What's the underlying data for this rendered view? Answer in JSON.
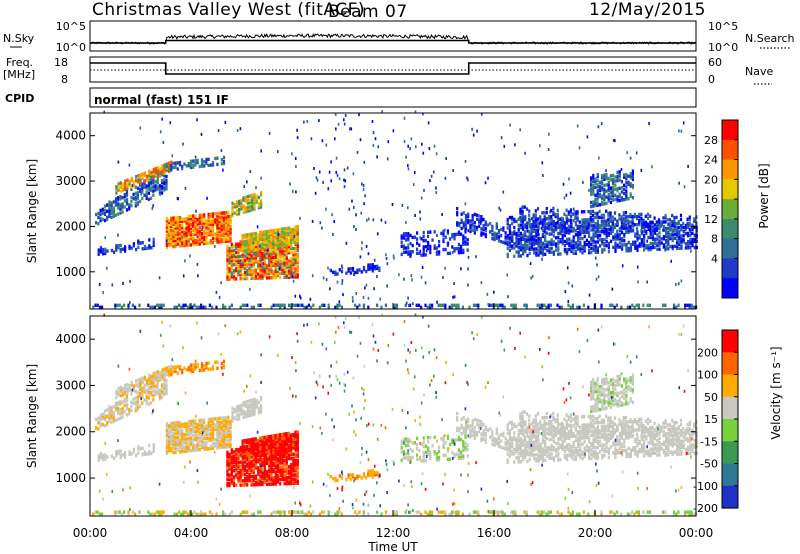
{
  "header": {
    "title": "Christmas Valley West (fitACF)",
    "beam": "Beam 07",
    "date": "12/May/2015"
  },
  "summary_panels": {
    "nsky_label": "N.Sky",
    "nsky_ticks": [
      "10^5",
      "10^0"
    ],
    "nsearch_label": "N.Search",
    "freq_label_1": "Freq.",
    "freq_label_2": "[MHz]",
    "freq_ticks": [
      "18",
      "8"
    ],
    "nave_label": "Nave",
    "nave_ticks": [
      "60",
      "0"
    ],
    "cpid_label": "CPID",
    "cpid_text": "normal (fast) 151 IF"
  },
  "chart_data": [
    {
      "type": "heatmap",
      "name": "power",
      "ylabel": "Slant Range [km]",
      "yticks": [
        "4000",
        "3000",
        "2000",
        "1000"
      ],
      "ylim": [
        180,
        4500
      ],
      "xlim": [
        0,
        24
      ],
      "colorbar_label": "Power [dB]",
      "colorbar_ticks": [
        "28",
        "24",
        "20",
        "16",
        "12",
        "8",
        "4"
      ],
      "colorbar_colors": [
        "#0000ff",
        "#1e3cc8",
        "#2f6e96",
        "#3a8c6e",
        "#6cae3c",
        "#e6c800",
        "#ff9600",
        "#ff5000",
        "#ff0000"
      ]
    },
    {
      "type": "heatmap",
      "name": "velocity",
      "ylabel": "Slant Range [km]",
      "yticks": [
        "4000",
        "3000",
        "2000",
        "1000"
      ],
      "ylim": [
        180,
        4500
      ],
      "xlim": [
        0,
        24
      ],
      "colorbar_label": "Velocity [m s⁻¹]",
      "colorbar_ticks": [
        "200",
        "100",
        "50",
        "15",
        "-15",
        "-50",
        "-100",
        "-200"
      ],
      "colorbar_colors": [
        "#1e32c8",
        "#2f7896",
        "#3c9a50",
        "#78d23c",
        "#c8c8c0",
        "#ffaa00",
        "#ff6400",
        "#ff0000"
      ]
    }
  ],
  "xaxis": {
    "ticks": [
      "00:00",
      "04:00",
      "08:00",
      "12:00",
      "16:00",
      "20:00",
      "00:00"
    ],
    "label": "Time UT"
  }
}
